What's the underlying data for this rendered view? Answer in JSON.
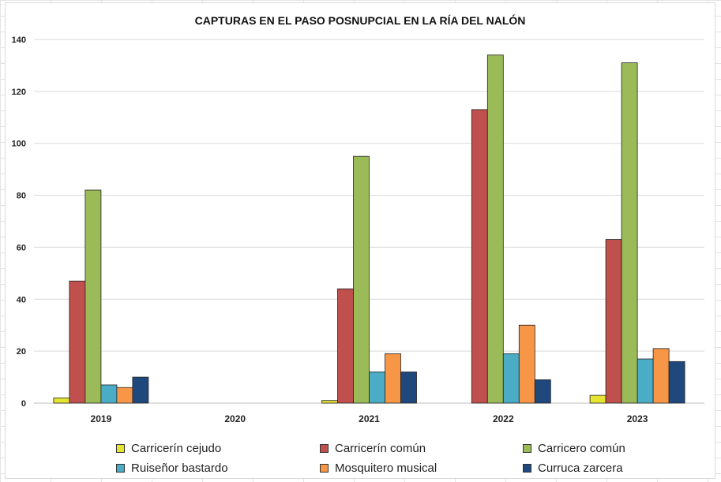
{
  "chart_data": {
    "type": "bar",
    "title": "CAPTURAS EN EL PASO POSNUPCIAL EN LA RÍA DEL NALÓN",
    "xlabel": "",
    "ylabel": "",
    "categories": [
      "2019",
      "2020",
      "2021",
      "2022",
      "2023"
    ],
    "ylim": [
      0,
      140
    ],
    "yticks": [
      "0",
      "20",
      "40",
      "60",
      "80",
      "100",
      "120",
      "140"
    ],
    "grid": true,
    "legend_position": "bottom",
    "series": [
      {
        "name": "Carricerín cejudo",
        "color": "#e4e431",
        "values": [
          2,
          0,
          1,
          0,
          3
        ]
      },
      {
        "name": "Carricerín común",
        "color": "#c0504d",
        "values": [
          47,
          0,
          44,
          113,
          63
        ]
      },
      {
        "name": "Carricero común",
        "color": "#9bbb59",
        "values": [
          82,
          0,
          95,
          134,
          131
        ]
      },
      {
        "name": "Ruiseñor bastardo",
        "color": "#4bacc6",
        "values": [
          7,
          0,
          12,
          19,
          17
        ]
      },
      {
        "name": "Mosquitero musical",
        "color": "#f79646",
        "values": [
          6,
          0,
          19,
          30,
          21
        ]
      },
      {
        "name": "Curruca zarcera",
        "color": "#1f497d",
        "values": [
          10,
          0,
          12,
          9,
          16
        ]
      }
    ]
  }
}
